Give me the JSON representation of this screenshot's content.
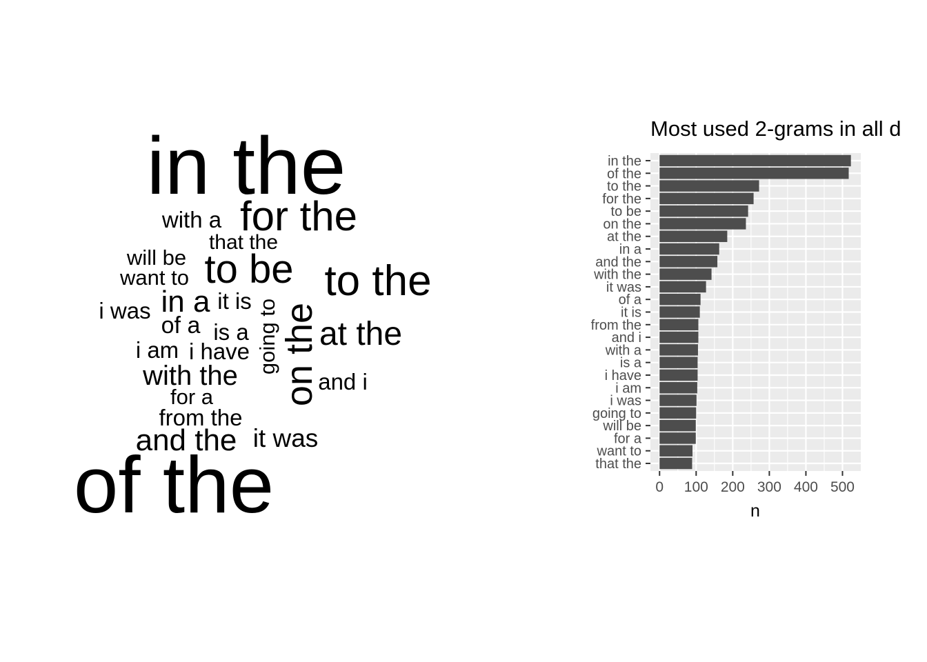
{
  "chart_data": [
    {
      "type": "wordcloud",
      "words": [
        {
          "text": "in the",
          "n": 523
        },
        {
          "text": "of the",
          "n": 517
        },
        {
          "text": "to the",
          "n": 272
        },
        {
          "text": "for the",
          "n": 257
        },
        {
          "text": "to be",
          "n": 242
        },
        {
          "text": "on the",
          "n": 236
        },
        {
          "text": "at the",
          "n": 185
        },
        {
          "text": "in a",
          "n": 163
        },
        {
          "text": "and the",
          "n": 158
        },
        {
          "text": "with the",
          "n": 142
        },
        {
          "text": "it was",
          "n": 127
        },
        {
          "text": "of a",
          "n": 112
        },
        {
          "text": "it is",
          "n": 110
        },
        {
          "text": "from the",
          "n": 106
        },
        {
          "text": "and i",
          "n": 106
        },
        {
          "text": "with a",
          "n": 105
        },
        {
          "text": "is a",
          "n": 104
        },
        {
          "text": "i have",
          "n": 104
        },
        {
          "text": "i am",
          "n": 103
        },
        {
          "text": "i was",
          "n": 101
        },
        {
          "text": "going to",
          "n": 100
        },
        {
          "text": "will be",
          "n": 99
        },
        {
          "text": "for a",
          "n": 99
        },
        {
          "text": "want to",
          "n": 90
        },
        {
          "text": "that the",
          "n": 89
        }
      ]
    },
    {
      "type": "bar",
      "orientation": "horizontal",
      "title": "Most used 2-grams in all d",
      "xlabel": "n",
      "ylabel": "",
      "categories": [
        "in the",
        "of the",
        "to the",
        "for the",
        "to be",
        "on the",
        "at the",
        "in a",
        "and the",
        "with the",
        "it was",
        "of a",
        "it is",
        "from the",
        "and i",
        "with a",
        "is a",
        "i have",
        "i am",
        "i was",
        "going to",
        "will be",
        "for a",
        "want to",
        "that the"
      ],
      "values": [
        523,
        517,
        272,
        257,
        242,
        236,
        185,
        163,
        158,
        142,
        127,
        112,
        110,
        106,
        106,
        105,
        104,
        104,
        103,
        101,
        100,
        99,
        99,
        90,
        89
      ],
      "xticks": [
        0,
        100,
        200,
        300,
        400,
        500
      ],
      "xlim": [
        -25,
        550
      ],
      "grid": true,
      "bar_color": "#4d4d4d",
      "panel_color": "#ebebeb"
    }
  ]
}
